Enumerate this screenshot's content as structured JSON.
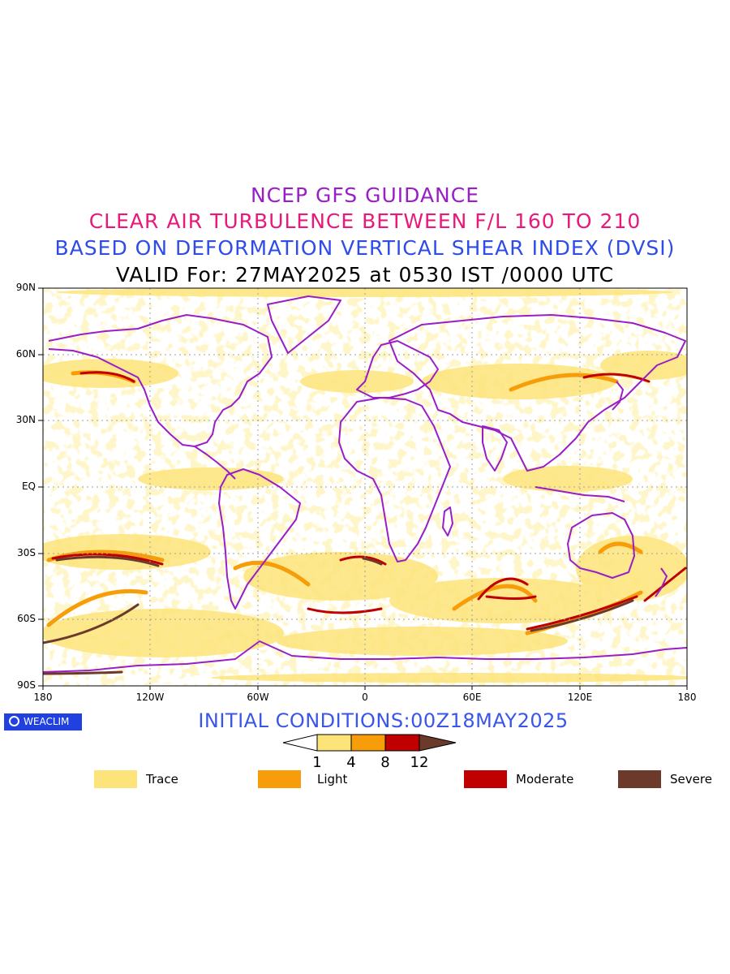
{
  "titles": {
    "line1": "NCEP GFS GUIDANCE",
    "line2": "CLEAR AIR TURBULENCE BETWEEN F/L 160 TO 210",
    "line3": "BASED ON DEFORMATION VERTICAL SHEAR INDEX (DVSI)",
    "line4": "VALID For: 27MAY2025 at 0530 IST /0000 UTC"
  },
  "axes": {
    "lat_labels": [
      "90N",
      "60N",
      "30N",
      "EQ",
      "30S",
      "60S",
      "90S"
    ],
    "lon_labels": [
      "180",
      "120W",
      "60W",
      "0",
      "60E",
      "120E",
      "180"
    ]
  },
  "logo": {
    "text": "WEACLIM"
  },
  "initial_conditions": "INITIAL CONDITIONS:00Z18MAY2025",
  "colorbar": {
    "ticks": [
      "1",
      "4",
      "8",
      "12"
    ],
    "colors": [
      "#ffffff",
      "#fde47a",
      "#f79d0a",
      "#c00000",
      "#6b3a2a"
    ]
  },
  "legend": [
    {
      "label": "Trace",
      "color": "#fde47a"
    },
    {
      "label": "Light",
      "color": "#f79d0a"
    },
    {
      "label": "Moderate",
      "color": "#c00000"
    },
    {
      "label": "Severe",
      "color": "#6b3a2a"
    }
  ],
  "colors": {
    "coastline": "#9a1ec8",
    "title1": "#9a1ec8",
    "title2": "#e8197a",
    "title3": "#2f4de6"
  }
}
